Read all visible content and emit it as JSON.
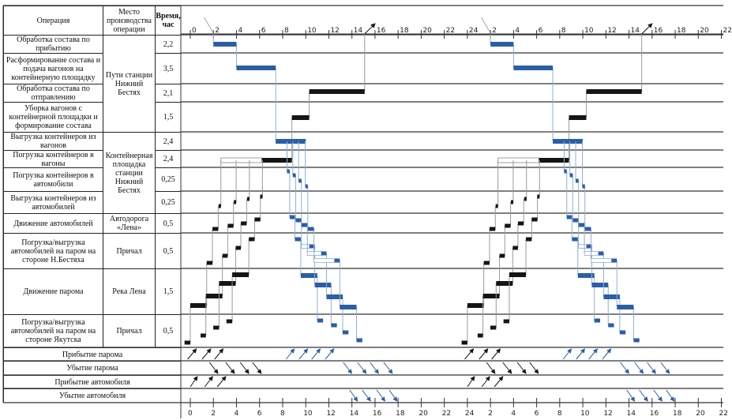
{
  "table": {
    "headers": {
      "operation": "Операция",
      "place": "Место производства операции",
      "time": "Время, час"
    },
    "rows": [
      {
        "operation": "Обработка состава по прибытию",
        "time": "2,2"
      },
      {
        "operation": "Расформирование состава и подача вагонов на контейнерную площадку",
        "time": "3,5"
      },
      {
        "operation": "Обработка состава по отправлению",
        "time": "2,1"
      },
      {
        "operation": "Уборка вагонов с контейнерной площадки и формирование состава",
        "time": "1,5"
      },
      {
        "operation": "Выгрузка контейнеров из вагонов",
        "time": "2,4"
      },
      {
        "operation": "Погрузка контейнеров в вагоны",
        "time": "2,4"
      },
      {
        "operation": "Погрузка контейнеров в автомобили",
        "time": "0,25"
      },
      {
        "operation": "Выгрузка контейнеров из автомобилей",
        "time": "0,25"
      },
      {
        "operation": "Движение автомобилей",
        "time": "0,5"
      },
      {
        "operation": "Погрузка/выгрузка автомобилей на паром на стороне Н.Бестяха",
        "time": "0,5"
      },
      {
        "operation": "Движение парома",
        "time": "1,5"
      },
      {
        "operation": "Погрузка/выгрузка автомобилей на паром на стороне Якутска",
        "time": "0,5"
      }
    ],
    "places": [
      {
        "label": "Пути станции Нижний Бестях",
        "rows": [
          1,
          4
        ]
      },
      {
        "label": "Контейнерная площадка станции Нижний Бестях",
        "rows": [
          5,
          8
        ]
      },
      {
        "label": "Автодорога «Лена»",
        "rows": [
          9,
          9
        ]
      },
      {
        "label": "Причал",
        "rows": [
          10,
          10
        ]
      },
      {
        "label": "Река Лена",
        "rows": [
          11,
          11
        ]
      },
      {
        "label": "Причал",
        "rows": [
          12,
          12
        ]
      }
    ],
    "events": [
      "Прибытие парома",
      "Убытие парома",
      "Прибытие автомобиля",
      "Убытие автомобиля"
    ]
  },
  "chart_data": {
    "type": "gantt",
    "time_unit": "hours",
    "cycle_period": 24,
    "cycles": 2,
    "axis_top_labels": [
      "0",
      "2",
      "4",
      "6",
      "8",
      "10",
      "12",
      "14",
      "16",
      "18",
      "20",
      "22",
      "24",
      "2",
      "4",
      "6",
      "8",
      "10",
      "12",
      "14",
      "16",
      "18",
      "20",
      "22"
    ],
    "axis_bottom_labels": [
      "0",
      "2",
      "4",
      "6",
      "8",
      "10",
      "12",
      "14",
      "16",
      "18",
      "20",
      "22",
      "24",
      "2",
      "4",
      "6",
      "8",
      "10",
      "12",
      "14",
      "16",
      "18",
      "20",
      "22"
    ],
    "colors": {
      "blue": "#2a5ea6",
      "black": "#151515",
      "blue_link": "#8eaedb",
      "black_link": "#9a9a9a"
    },
    "main_bars": [
      {
        "row": 1,
        "start": 2.0,
        "end": 4.0,
        "color": "blue"
      },
      {
        "row": 2,
        "start": 4.0,
        "end": 7.4,
        "color": "blue"
      },
      {
        "row": 3,
        "start": 10.3,
        "end": 15.1,
        "color": "black"
      },
      {
        "row": 4,
        "start": 8.8,
        "end": 10.3,
        "color": "black"
      },
      {
        "row": 5,
        "start": 7.4,
        "end": 10.0,
        "color": "blue"
      },
      {
        "row": 6,
        "start": 6.2,
        "end": 8.8,
        "color": "black",
        "white_start": 2.65
      }
    ],
    "black_chains": [
      [
        {
          "row": 12,
          "start": -0.5,
          "end": 0.0
        },
        {
          "row": 11,
          "start": 0.0,
          "end": 1.42
        },
        {
          "row": 10,
          "start": 1.42,
          "end": 1.92
        },
        {
          "row": 9,
          "start": 1.92,
          "end": 2.42
        },
        {
          "row": 8,
          "start": 2.45,
          "end": 2.65
        }
      ],
      [
        {
          "row": 12,
          "start": 0.89,
          "end": 1.35
        },
        {
          "row": 11,
          "start": 1.35,
          "end": 2.78
        },
        {
          "row": 10,
          "start": 2.78,
          "end": 3.24
        },
        {
          "row": 9,
          "start": 3.24,
          "end": 3.74
        },
        {
          "row": 8,
          "start": 3.77,
          "end": 3.97
        }
      ],
      [
        {
          "row": 12,
          "start": 1.99,
          "end": 2.49
        },
        {
          "row": 11,
          "start": 2.49,
          "end": 3.93
        },
        {
          "row": 10,
          "start": 3.93,
          "end": 4.38
        },
        {
          "row": 9,
          "start": 4.38,
          "end": 4.88
        },
        {
          "row": 8,
          "start": 4.92,
          "end": 5.12
        }
      ],
      [
        {
          "row": 12,
          "start": 3.13,
          "end": 3.63
        },
        {
          "row": 11,
          "start": 3.63,
          "end": 5.07
        },
        {
          "row": 10,
          "start": 5.07,
          "end": 5.57
        },
        {
          "row": 9,
          "start": 5.57,
          "end": 6.07
        },
        {
          "row": 8,
          "start": 6.05,
          "end": 6.25
        }
      ]
    ],
    "blue_chains": [
      [
        {
          "row": 7,
          "start": 8.38,
          "end": 8.61
        },
        {
          "row": 9,
          "start": 8.61,
          "end": 9.06
        },
        {
          "row": 10,
          "start": 9.06,
          "end": 9.57
        },
        {
          "row": 11,
          "start": 9.57,
          "end": 11.0
        },
        {
          "row": 12,
          "start": 11.0,
          "end": 11.5
        }
      ],
      [
        {
          "row": 7,
          "start": 8.88,
          "end": 9.13
        },
        {
          "row": 9,
          "start": 9.13,
          "end": 9.63
        },
        {
          "row": 10,
          "start": 10.32,
          "end": 10.78,
          "white_start": 9.63
        },
        {
          "row": 11,
          "start": 10.78,
          "end": 12.2
        },
        {
          "row": 12,
          "start": 12.2,
          "end": 12.7
        }
      ],
      [
        {
          "row": 7,
          "start": 9.38,
          "end": 9.63
        },
        {
          "row": 9,
          "start": 9.63,
          "end": 10.14
        },
        {
          "row": 10,
          "start": 11.35,
          "end": 11.8,
          "white_start": 10.14
        },
        {
          "row": 11,
          "start": 11.8,
          "end": 13.2
        },
        {
          "row": 12,
          "start": 13.2,
          "end": 13.7
        }
      ],
      [
        {
          "row": 7,
          "start": 9.96,
          "end": 10.18
        },
        {
          "row": 9,
          "start": 10.18,
          "end": 10.71
        },
        {
          "row": 10,
          "start": 12.49,
          "end": 12.95,
          "white_start": 10.71
        },
        {
          "row": 11,
          "start": 12.95,
          "end": 14.4
        },
        {
          "row": 12,
          "start": 14.4,
          "end": 14.9
        }
      ]
    ],
    "event_arrows": [
      {
        "event": "ferry_arrival",
        "direction": "up",
        "items": [
          [
            -0.23,
            0.52,
            "black"
          ],
          [
            1.02,
            1.77,
            "black"
          ],
          [
            2.11,
            2.84,
            "black"
          ],
          [
            8.3,
            9.0,
            "blue"
          ],
          [
            9.43,
            10.16,
            "blue"
          ],
          [
            10.52,
            11.25,
            "blue"
          ],
          [
            11.7,
            12.43,
            "blue"
          ]
        ]
      },
      {
        "event": "ferry_departure",
        "direction": "down",
        "items": [
          [
            1.66,
            2.39,
            "black"
          ],
          [
            3.07,
            3.82,
            "black"
          ],
          [
            4.32,
            5.07,
            "black"
          ],
          [
            5.39,
            6.14,
            "black"
          ],
          [
            13.25,
            13.98,
            "blue"
          ],
          [
            14.48,
            15.23,
            "blue"
          ],
          [
            15.57,
            16.3,
            "blue"
          ],
          [
            16.75,
            17.5,
            "blue"
          ]
        ]
      },
      {
        "event": "car_arrival",
        "direction": "up",
        "items": [
          [
            0.0,
            0.61,
            "black"
          ],
          [
            1.25,
            1.93,
            "black"
          ],
          [
            2.34,
            3.07,
            "black"
          ]
        ]
      },
      {
        "event": "car_departure",
        "direction": "down",
        "items": [
          [
            13.8,
            14.48,
            "blue"
          ],
          [
            14.89,
            15.61,
            "blue"
          ],
          [
            16.14,
            16.86,
            "blue"
          ],
          [
            17.23,
            17.9,
            "blue"
          ]
        ]
      }
    ]
  }
}
